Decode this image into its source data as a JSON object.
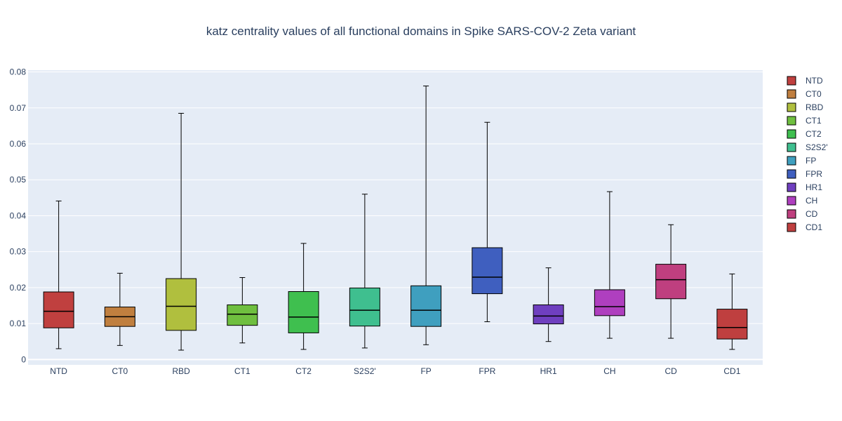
{
  "chart_data": {
    "type": "box",
    "title": "katz centrality values of all functional domains in Spike SARS-COV-2 Zeta variant",
    "xlabel": "",
    "ylabel": "",
    "ylim": [
      -0.0015,
      0.0805
    ],
    "yticks": [
      0,
      0.01,
      0.02,
      0.03,
      0.04,
      0.05,
      0.06,
      0.07,
      0.08
    ],
    "ytick_labels": [
      "0",
      "0.01",
      "0.02",
      "0.03",
      "0.04",
      "0.05",
      "0.06",
      "0.07",
      "0.08"
    ],
    "grid": true,
    "legend_position": "right",
    "categories": [
      "NTD",
      "CT0",
      "RBD",
      "CT1",
      "CT2",
      "S2S2'",
      "FP",
      "FPR",
      "HR1",
      "CH",
      "CD",
      "CD1"
    ],
    "series": [
      {
        "name": "NTD",
        "color": "#c0403f",
        "min": 0.003,
        "q1": 0.0088,
        "median": 0.0134,
        "q3": 0.0188,
        "max": 0.0441
      },
      {
        "name": "CT0",
        "color": "#c07f3f",
        "min": 0.0039,
        "q1": 0.0092,
        "median": 0.0119,
        "q3": 0.0146,
        "max": 0.024
      },
      {
        "name": "RBD",
        "color": "#b0bf3e",
        "min": 0.0026,
        "q1": 0.0081,
        "median": 0.0148,
        "q3": 0.0225,
        "max": 0.0685
      },
      {
        "name": "CT1",
        "color": "#6fbf3f",
        "min": 0.0046,
        "q1": 0.0095,
        "median": 0.0126,
        "q3": 0.0152,
        "max": 0.0228
      },
      {
        "name": "CT2",
        "color": "#3fbf4f",
        "min": 0.0028,
        "q1": 0.0074,
        "median": 0.0118,
        "q3": 0.0189,
        "max": 0.0323
      },
      {
        "name": "S2S2'",
        "color": "#3fbf8f",
        "min": 0.0032,
        "q1": 0.0093,
        "median": 0.0137,
        "q3": 0.0199,
        "max": 0.046
      },
      {
        "name": "FP",
        "color": "#3f9fbf",
        "min": 0.0041,
        "q1": 0.0092,
        "median": 0.0137,
        "q3": 0.0205,
        "max": 0.0761
      },
      {
        "name": "FPR",
        "color": "#3f5fbf",
        "min": 0.0105,
        "q1": 0.0183,
        "median": 0.0229,
        "q3": 0.0311,
        "max": 0.066
      },
      {
        "name": "HR1",
        "color": "#6f3fbf",
        "min": 0.005,
        "q1": 0.0099,
        "median": 0.0121,
        "q3": 0.0152,
        "max": 0.0255
      },
      {
        "name": "CH",
        "color": "#af3fbf",
        "min": 0.0059,
        "q1": 0.0122,
        "median": 0.0147,
        "q3": 0.0194,
        "max": 0.0467
      },
      {
        "name": "CD",
        "color": "#bf3f7f",
        "min": 0.0059,
        "q1": 0.0169,
        "median": 0.0222,
        "q3": 0.0265,
        "max": 0.0375
      },
      {
        "name": "CD1",
        "color": "#bf3f3f",
        "min": 0.0028,
        "q1": 0.0057,
        "median": 0.0089,
        "q3": 0.014,
        "max": 0.0238
      }
    ]
  },
  "colors": {
    "plot_background": "#e5ecf6",
    "grid": "#ffffff",
    "text": "#2a3f5f",
    "box_outline": "#000000"
  }
}
